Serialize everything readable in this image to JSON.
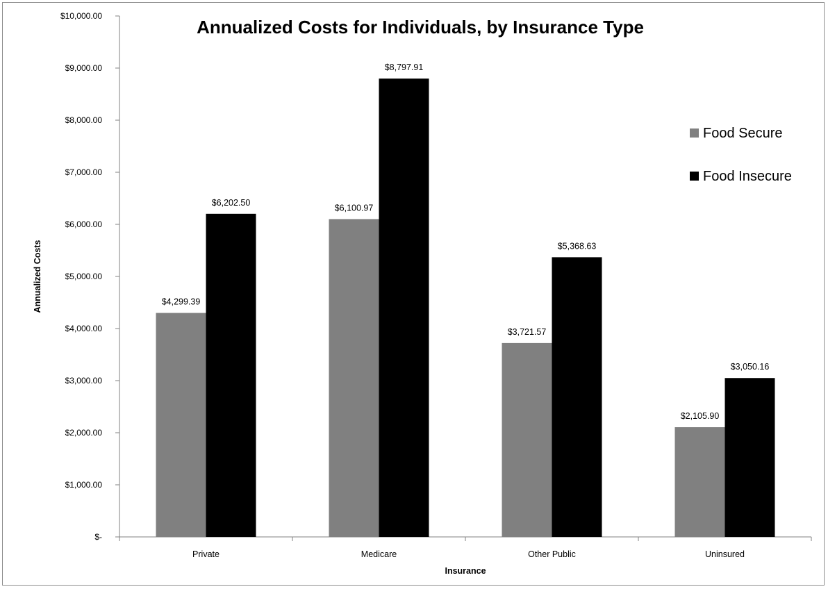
{
  "chart_data": {
    "type": "bar",
    "title": "Annualized Costs for Individuals, by Insurance Type",
    "xlabel": "Insurance",
    "ylabel": "Annualized Costs",
    "categories": [
      "Private",
      "Medicare",
      "Other Public",
      "Uninsured"
    ],
    "series": [
      {
        "name": "Food Secure",
        "color": "#808080",
        "values": [
          4299.39,
          6100.97,
          3721.57,
          2105.9
        ],
        "labels": [
          "$4,299.39",
          "$6,100.97",
          "$3,721.57",
          "$2,105.90"
        ]
      },
      {
        "name": "Food Insecure",
        "color": "#000000",
        "values": [
          6202.5,
          8797.91,
          5368.63,
          3050.16
        ],
        "labels": [
          "$6,202.50",
          "$8,797.91",
          "$5,368.63",
          "$3,050.16"
        ]
      }
    ],
    "ylim": [
      0,
      10000
    ],
    "yticks": [
      0,
      1000,
      2000,
      3000,
      4000,
      5000,
      6000,
      7000,
      8000,
      9000,
      10000
    ],
    "ytick_labels": [
      "$-",
      "$1,000.00",
      "$2,000.00",
      "$3,000.00",
      "$4,000.00",
      "$5,000.00",
      "$6,000.00",
      "$7,000.00",
      "$8,000.00",
      "$9,000.00",
      "$10,000.00"
    ],
    "grid": false,
    "legend_position": "right"
  }
}
